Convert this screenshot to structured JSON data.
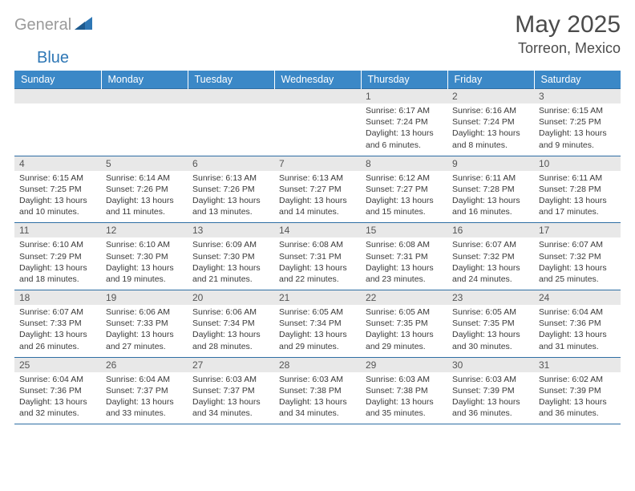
{
  "brand": {
    "gray": "General",
    "blue": "Blue"
  },
  "colors": {
    "header_bg": "#3b88c7",
    "header_text": "#ffffff",
    "daynum_bg": "#e8e8e8",
    "row_border": "#2e6ea3",
    "logo_gray": "#9a9a9a",
    "logo_blue": "#2e77b5",
    "text": "#3a3a3a",
    "title": "#4b4b4b",
    "page_bg": "#ffffff"
  },
  "typography": {
    "title_fontsize": 30,
    "location_fontsize": 18,
    "weekday_fontsize": 12.5,
    "daynum_fontsize": 12,
    "body_fontsize": 10.5,
    "font_family": "Arial"
  },
  "header": {
    "title": "May 2025",
    "location": "Torreon, Mexico"
  },
  "weekdays": [
    "Sunday",
    "Monday",
    "Tuesday",
    "Wednesday",
    "Thursday",
    "Friday",
    "Saturday"
  ],
  "weeks": [
    [
      null,
      null,
      null,
      null,
      {
        "n": "1",
        "sr": "Sunrise: 6:17 AM",
        "ss": "Sunset: 7:24 PM",
        "dl": "Daylight: 13 hours and 6 minutes."
      },
      {
        "n": "2",
        "sr": "Sunrise: 6:16 AM",
        "ss": "Sunset: 7:24 PM",
        "dl": "Daylight: 13 hours and 8 minutes."
      },
      {
        "n": "3",
        "sr": "Sunrise: 6:15 AM",
        "ss": "Sunset: 7:25 PM",
        "dl": "Daylight: 13 hours and 9 minutes."
      }
    ],
    [
      {
        "n": "4",
        "sr": "Sunrise: 6:15 AM",
        "ss": "Sunset: 7:25 PM",
        "dl": "Daylight: 13 hours and 10 minutes."
      },
      {
        "n": "5",
        "sr": "Sunrise: 6:14 AM",
        "ss": "Sunset: 7:26 PM",
        "dl": "Daylight: 13 hours and 11 minutes."
      },
      {
        "n": "6",
        "sr": "Sunrise: 6:13 AM",
        "ss": "Sunset: 7:26 PM",
        "dl": "Daylight: 13 hours and 13 minutes."
      },
      {
        "n": "7",
        "sr": "Sunrise: 6:13 AM",
        "ss": "Sunset: 7:27 PM",
        "dl": "Daylight: 13 hours and 14 minutes."
      },
      {
        "n": "8",
        "sr": "Sunrise: 6:12 AM",
        "ss": "Sunset: 7:27 PM",
        "dl": "Daylight: 13 hours and 15 minutes."
      },
      {
        "n": "9",
        "sr": "Sunrise: 6:11 AM",
        "ss": "Sunset: 7:28 PM",
        "dl": "Daylight: 13 hours and 16 minutes."
      },
      {
        "n": "10",
        "sr": "Sunrise: 6:11 AM",
        "ss": "Sunset: 7:28 PM",
        "dl": "Daylight: 13 hours and 17 minutes."
      }
    ],
    [
      {
        "n": "11",
        "sr": "Sunrise: 6:10 AM",
        "ss": "Sunset: 7:29 PM",
        "dl": "Daylight: 13 hours and 18 minutes."
      },
      {
        "n": "12",
        "sr": "Sunrise: 6:10 AM",
        "ss": "Sunset: 7:30 PM",
        "dl": "Daylight: 13 hours and 19 minutes."
      },
      {
        "n": "13",
        "sr": "Sunrise: 6:09 AM",
        "ss": "Sunset: 7:30 PM",
        "dl": "Daylight: 13 hours and 21 minutes."
      },
      {
        "n": "14",
        "sr": "Sunrise: 6:08 AM",
        "ss": "Sunset: 7:31 PM",
        "dl": "Daylight: 13 hours and 22 minutes."
      },
      {
        "n": "15",
        "sr": "Sunrise: 6:08 AM",
        "ss": "Sunset: 7:31 PM",
        "dl": "Daylight: 13 hours and 23 minutes."
      },
      {
        "n": "16",
        "sr": "Sunrise: 6:07 AM",
        "ss": "Sunset: 7:32 PM",
        "dl": "Daylight: 13 hours and 24 minutes."
      },
      {
        "n": "17",
        "sr": "Sunrise: 6:07 AM",
        "ss": "Sunset: 7:32 PM",
        "dl": "Daylight: 13 hours and 25 minutes."
      }
    ],
    [
      {
        "n": "18",
        "sr": "Sunrise: 6:07 AM",
        "ss": "Sunset: 7:33 PM",
        "dl": "Daylight: 13 hours and 26 minutes."
      },
      {
        "n": "19",
        "sr": "Sunrise: 6:06 AM",
        "ss": "Sunset: 7:33 PM",
        "dl": "Daylight: 13 hours and 27 minutes."
      },
      {
        "n": "20",
        "sr": "Sunrise: 6:06 AM",
        "ss": "Sunset: 7:34 PM",
        "dl": "Daylight: 13 hours and 28 minutes."
      },
      {
        "n": "21",
        "sr": "Sunrise: 6:05 AM",
        "ss": "Sunset: 7:34 PM",
        "dl": "Daylight: 13 hours and 29 minutes."
      },
      {
        "n": "22",
        "sr": "Sunrise: 6:05 AM",
        "ss": "Sunset: 7:35 PM",
        "dl": "Daylight: 13 hours and 29 minutes."
      },
      {
        "n": "23",
        "sr": "Sunrise: 6:05 AM",
        "ss": "Sunset: 7:35 PM",
        "dl": "Daylight: 13 hours and 30 minutes."
      },
      {
        "n": "24",
        "sr": "Sunrise: 6:04 AM",
        "ss": "Sunset: 7:36 PM",
        "dl": "Daylight: 13 hours and 31 minutes."
      }
    ],
    [
      {
        "n": "25",
        "sr": "Sunrise: 6:04 AM",
        "ss": "Sunset: 7:36 PM",
        "dl": "Daylight: 13 hours and 32 minutes."
      },
      {
        "n": "26",
        "sr": "Sunrise: 6:04 AM",
        "ss": "Sunset: 7:37 PM",
        "dl": "Daylight: 13 hours and 33 minutes."
      },
      {
        "n": "27",
        "sr": "Sunrise: 6:03 AM",
        "ss": "Sunset: 7:37 PM",
        "dl": "Daylight: 13 hours and 34 minutes."
      },
      {
        "n": "28",
        "sr": "Sunrise: 6:03 AM",
        "ss": "Sunset: 7:38 PM",
        "dl": "Daylight: 13 hours and 34 minutes."
      },
      {
        "n": "29",
        "sr": "Sunrise: 6:03 AM",
        "ss": "Sunset: 7:38 PM",
        "dl": "Daylight: 13 hours and 35 minutes."
      },
      {
        "n": "30",
        "sr": "Sunrise: 6:03 AM",
        "ss": "Sunset: 7:39 PM",
        "dl": "Daylight: 13 hours and 36 minutes."
      },
      {
        "n": "31",
        "sr": "Sunrise: 6:02 AM",
        "ss": "Sunset: 7:39 PM",
        "dl": "Daylight: 13 hours and 36 minutes."
      }
    ]
  ]
}
